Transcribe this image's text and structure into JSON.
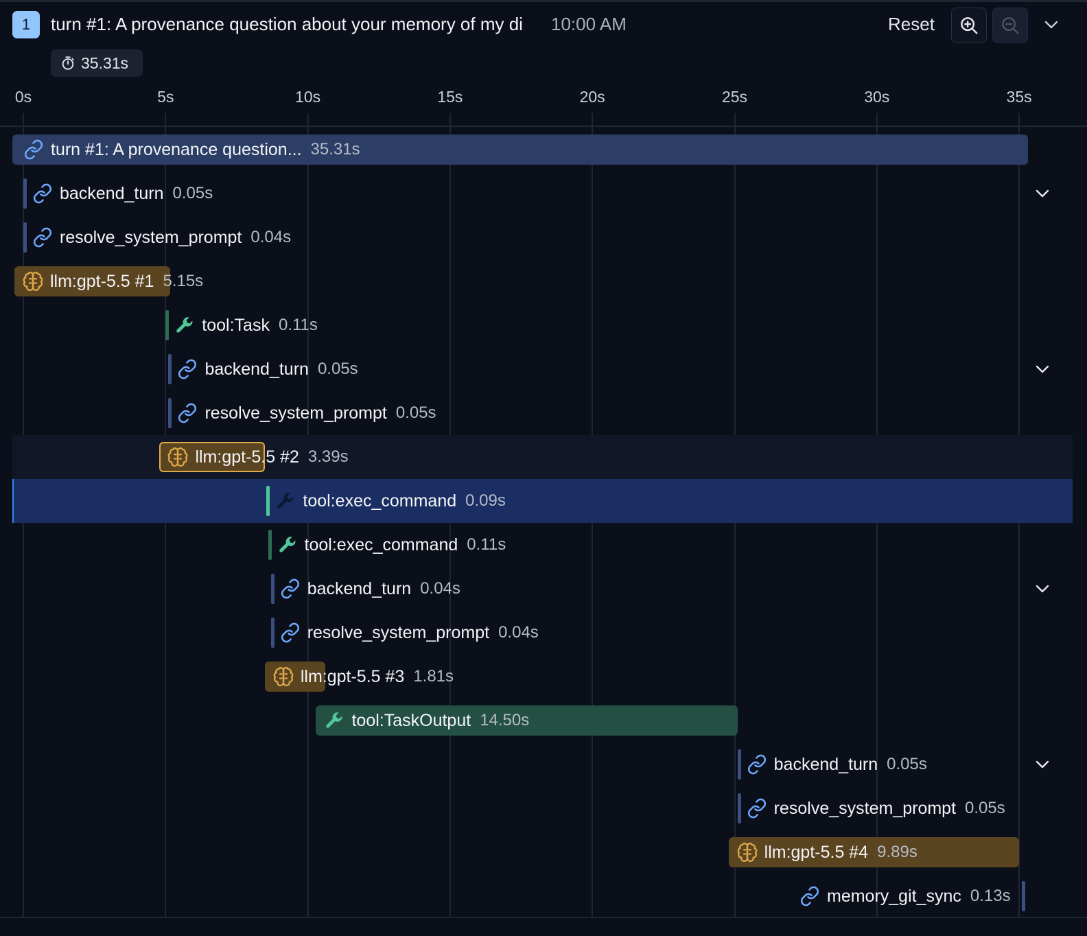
{
  "header": {
    "turn_badge": "1",
    "title": "turn #1: A provenance question about your memory of my di",
    "time": "10:00 AM",
    "reset_label": "Reset",
    "total_duration": "35.31s"
  },
  "axis": {
    "ticks": [
      "0s",
      "5s",
      "10s",
      "15s",
      "20s",
      "25s",
      "30s",
      "35s"
    ]
  },
  "spans": [
    {
      "name": "turn #1: A provenance question...",
      "duration": "35.31s",
      "kind": "link",
      "icon": "link-icon",
      "start_s": 0.0,
      "duration_s": 35.31,
      "expandable": false
    },
    {
      "name": "backend_turn",
      "duration": "0.05s",
      "kind": "link",
      "icon": "link-icon",
      "start_s": 0.0,
      "duration_s": 0.05,
      "expandable": true
    },
    {
      "name": "resolve_system_prompt",
      "duration": "0.04s",
      "kind": "link",
      "icon": "link-icon",
      "start_s": 0.0,
      "duration_s": 0.04,
      "expandable": false
    },
    {
      "name": "llm:gpt-5.5 #1",
      "duration": "5.15s",
      "kind": "llm",
      "icon": "brain-icon",
      "start_s": 0.0,
      "duration_s": 5.15,
      "expandable": false
    },
    {
      "name": "tool:Task",
      "duration": "0.11s",
      "kind": "tool",
      "icon": "wrench-icon",
      "start_s": 5.0,
      "duration_s": 0.11,
      "expandable": false
    },
    {
      "name": "backend_turn",
      "duration": "0.05s",
      "kind": "link",
      "icon": "link-icon",
      "start_s": 5.1,
      "duration_s": 0.05,
      "expandable": true
    },
    {
      "name": "resolve_system_prompt",
      "duration": "0.05s",
      "kind": "link",
      "icon": "link-icon",
      "start_s": 5.1,
      "duration_s": 0.05,
      "expandable": false
    },
    {
      "name": "llm:gpt-5.5 #2",
      "duration": "3.39s",
      "kind": "llm",
      "icon": "brain-icon",
      "start_s": 5.1,
      "duration_s": 3.39,
      "expandable": false,
      "state": "hover"
    },
    {
      "name": "tool:exec_command",
      "duration": "0.09s",
      "kind": "tool",
      "icon": "wrench-icon",
      "start_s": 8.5,
      "duration_s": 0.09,
      "expandable": false,
      "state": "selected"
    },
    {
      "name": "tool:exec_command",
      "duration": "0.11s",
      "kind": "tool",
      "icon": "wrench-icon",
      "start_s": 8.6,
      "duration_s": 0.11,
      "expandable": false
    },
    {
      "name": "backend_turn",
      "duration": "0.04s",
      "kind": "link",
      "icon": "link-icon",
      "start_s": 8.7,
      "duration_s": 0.04,
      "expandable": true
    },
    {
      "name": "resolve_system_prompt",
      "duration": "0.04s",
      "kind": "link",
      "icon": "link-icon",
      "start_s": 8.7,
      "duration_s": 0.04,
      "expandable": false
    },
    {
      "name": "llm:gpt-5.5 #3",
      "duration": "1.81s",
      "kind": "llm",
      "icon": "brain-icon",
      "start_s": 8.8,
      "duration_s": 1.81,
      "expandable": false
    },
    {
      "name": "tool:TaskOutput",
      "duration": "14.50s",
      "kind": "tool",
      "icon": "wrench-icon",
      "start_s": 10.6,
      "duration_s": 14.5,
      "expandable": false
    },
    {
      "name": "backend_turn",
      "duration": "0.05s",
      "kind": "link",
      "icon": "link-icon",
      "start_s": 25.1,
      "duration_s": 0.05,
      "expandable": true
    },
    {
      "name": "resolve_system_prompt",
      "duration": "0.05s",
      "kind": "link",
      "icon": "link-icon",
      "start_s": 25.1,
      "duration_s": 0.05,
      "expandable": false
    },
    {
      "name": "llm:gpt-5.5 #4",
      "duration": "9.89s",
      "kind": "llm",
      "icon": "brain-icon",
      "start_s": 25.1,
      "duration_s": 9.89,
      "expandable": false
    },
    {
      "name": "memory_git_sync",
      "duration": "0.13s",
      "kind": "link",
      "icon": "link-icon",
      "start_s": 35.1,
      "duration_s": 0.13,
      "expandable": false,
      "label_side": "left"
    }
  ],
  "colors": {
    "link": "#6ea8ff",
    "llm": "#e0a94a",
    "tool": "#4fc79a",
    "selected": "#1a2e63"
  }
}
